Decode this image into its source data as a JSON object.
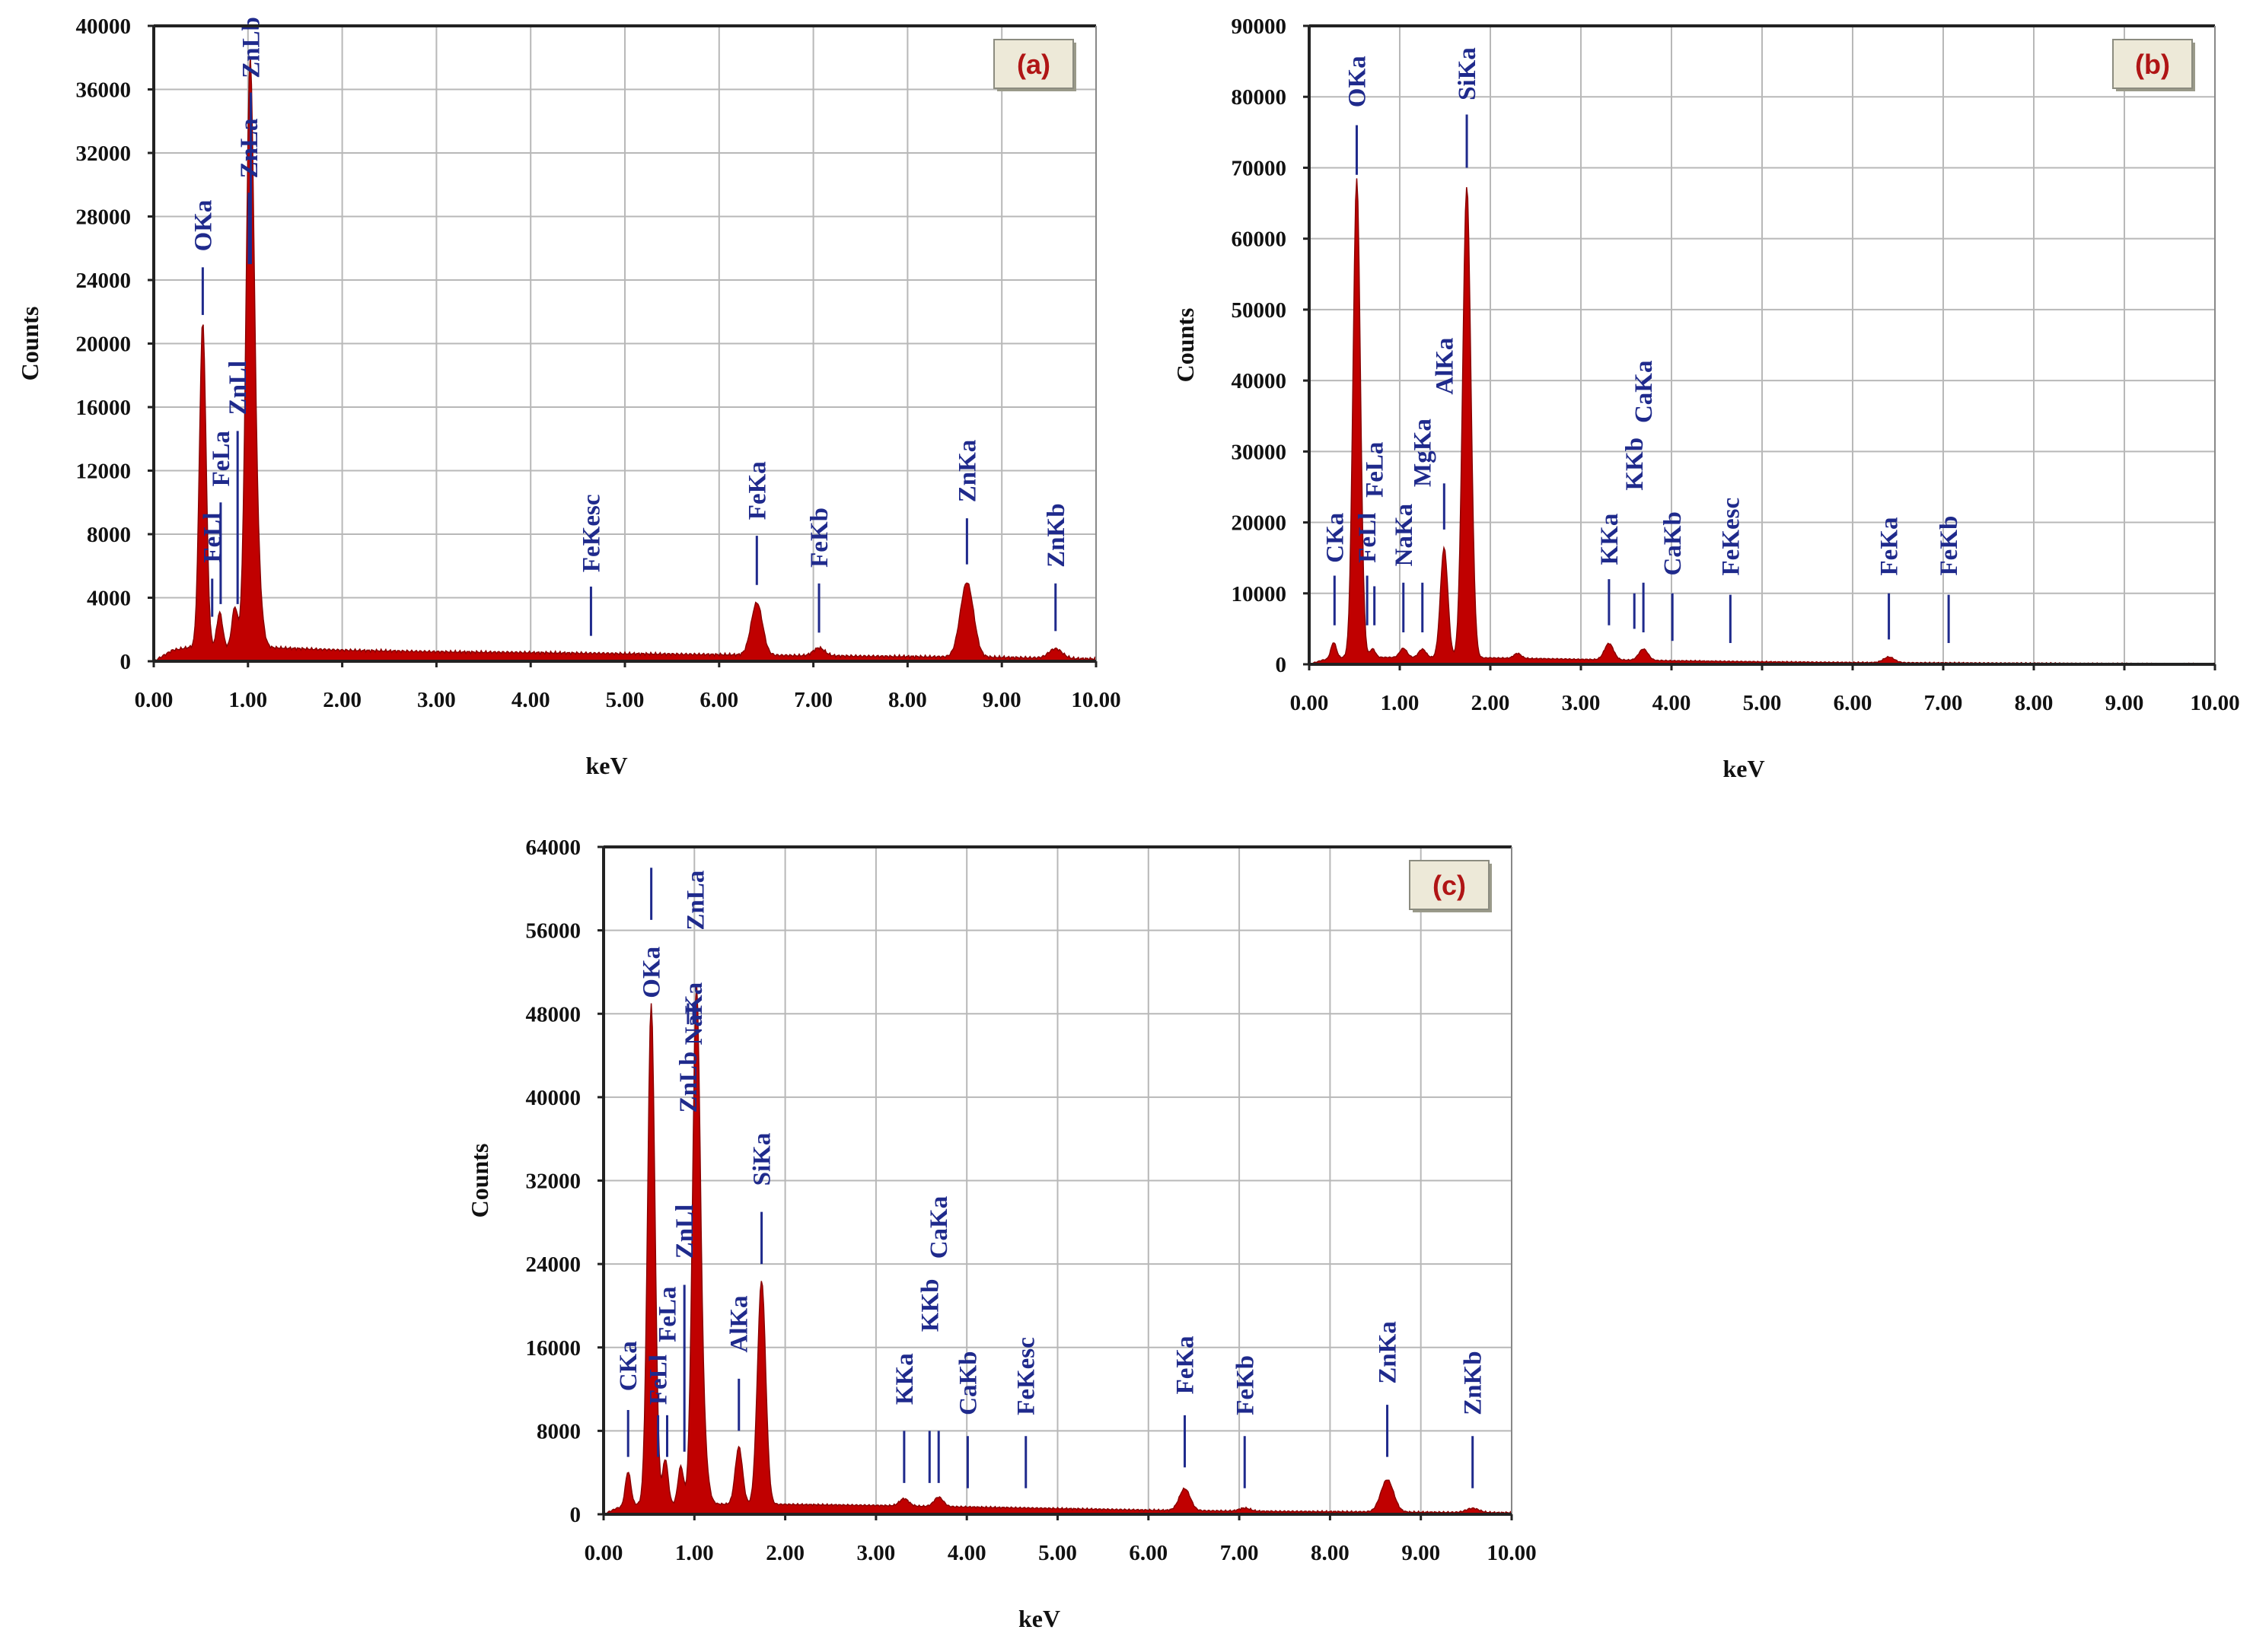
{
  "chart_data": [
    {
      "type": "area",
      "panel_label": "(a)",
      "xlabel": "keV",
      "ylabel": "Counts",
      "xlim": [
        0,
        10
      ],
      "ylim": [
        0,
        40000
      ],
      "xticks": [
        "0.00",
        "1.00",
        "2.00",
        "3.00",
        "4.00",
        "5.00",
        "6.00",
        "7.00",
        "8.00",
        "9.00",
        "10.00"
      ],
      "yticks": [
        "0",
        "4000",
        "8000",
        "12000",
        "16000",
        "20000",
        "24000",
        "28000",
        "32000",
        "36000",
        "40000"
      ],
      "color": "#c00000",
      "baseline": [
        [
          0.0,
          0
        ],
        [
          0.2,
          700
        ],
        [
          0.4,
          900
        ],
        [
          1.3,
          850
        ],
        [
          2.0,
          700
        ],
        [
          3.0,
          600
        ],
        [
          4.0,
          550
        ],
        [
          5.0,
          480
        ],
        [
          6.0,
          420
        ],
        [
          7.0,
          350
        ],
        [
          8.0,
          300
        ],
        [
          9.0,
          250
        ],
        [
          10.0,
          150
        ]
      ],
      "peaks": [
        {
          "x": 0.52,
          "y": 20500,
          "w": 0.035
        },
        {
          "x": 0.7,
          "y": 2200,
          "w": 0.03
        },
        {
          "x": 0.86,
          "y": 2500,
          "w": 0.03
        },
        {
          "x": 1.02,
          "y": 28200,
          "w": 0.04
        },
        {
          "x": 1.05,
          "y": 10000,
          "w": 0.06
        },
        {
          "x": 6.4,
          "y": 3300,
          "w": 0.06
        },
        {
          "x": 7.06,
          "y": 500,
          "w": 0.06
        },
        {
          "x": 8.63,
          "y": 4700,
          "w": 0.07
        },
        {
          "x": 9.57,
          "y": 600,
          "w": 0.07
        }
      ],
      "annotations": [
        {
          "label": "OKa",
          "x": 0.52,
          "y1": 21800,
          "y2": 24800,
          "ty": 25800
        },
        {
          "label": "FeLl",
          "x": 0.62,
          "y1": 2800,
          "y2": 5200,
          "ty": 6200
        },
        {
          "label": "FeLa",
          "x": 0.71,
          "y1": 3600,
          "y2": 10000,
          "ty": 11000
        },
        {
          "label": "ZnLl",
          "x": 0.89,
          "y1": 3600,
          "y2": 14500,
          "ty": 15500
        },
        {
          "label": "ZnLa",
          "x": 1.01,
          "y1": 25000,
          "y2": 29500,
          "ty": 30400
        },
        {
          "label": "ZnLb",
          "x": 1.03,
          "y1": 25000,
          "y2": 35800,
          "ty": 36700
        },
        {
          "label": "FeKesc",
          "x": 4.64,
          "y1": 1600,
          "y2": 4700,
          "ty": 5600
        },
        {
          "label": "FeKa",
          "x": 6.4,
          "y1": 4800,
          "y2": 7900,
          "ty": 8900
        },
        {
          "label": "FeKb",
          "x": 7.06,
          "y1": 1800,
          "y2": 4900,
          "ty": 5900
        },
        {
          "label": "ZnKa",
          "x": 8.63,
          "y1": 6100,
          "y2": 9000,
          "ty": 10000
        },
        {
          "label": "ZnKb",
          "x": 9.57,
          "y1": 1900,
          "y2": 4900,
          "ty": 5900
        }
      ]
    },
    {
      "type": "area",
      "panel_label": "(b)",
      "xlabel": "keV",
      "ylabel": "Counts",
      "xlim": [
        0,
        10
      ],
      "ylim": [
        0,
        90000
      ],
      "xticks": [
        "0.00",
        "1.00",
        "2.00",
        "3.00",
        "4.00",
        "5.00",
        "6.00",
        "7.00",
        "8.00",
        "9.00",
        "10.00"
      ],
      "yticks": [
        "0",
        "10000",
        "20000",
        "30000",
        "40000",
        "50000",
        "60000",
        "70000",
        "80000",
        "90000"
      ],
      "color": "#c00000",
      "baseline": [
        [
          0.0,
          0
        ],
        [
          0.15,
          600
        ],
        [
          0.4,
          1000
        ],
        [
          2.0,
          900
        ],
        [
          3.0,
          700
        ],
        [
          4.0,
          500
        ],
        [
          5.0,
          350
        ],
        [
          6.0,
          250
        ],
        [
          7.0,
          200
        ],
        [
          8.0,
          150
        ],
        [
          9.0,
          100
        ],
        [
          10.0,
          60
        ]
      ],
      "peaks": [
        {
          "x": 0.27,
          "y": 2300,
          "w": 0.03
        },
        {
          "x": 0.525,
          "y": 67500,
          "w": 0.04
        },
        {
          "x": 0.7,
          "y": 1200,
          "w": 0.03
        },
        {
          "x": 1.04,
          "y": 1300,
          "w": 0.04
        },
        {
          "x": 1.25,
          "y": 1200,
          "w": 0.04
        },
        {
          "x": 1.49,
          "y": 15500,
          "w": 0.04
        },
        {
          "x": 1.74,
          "y": 66500,
          "w": 0.045
        },
        {
          "x": 2.3,
          "y": 700,
          "w": 0.04
        },
        {
          "x": 3.31,
          "y": 2300,
          "w": 0.05
        },
        {
          "x": 3.69,
          "y": 1600,
          "w": 0.05
        },
        {
          "x": 6.4,
          "y": 800,
          "w": 0.06
        }
      ],
      "annotations": [
        {
          "label": "CKa",
          "x": 0.28,
          "y1": 5500,
          "y2": 12500,
          "ty": 14300
        },
        {
          "label": "FeLl",
          "x": 0.64,
          "y1": 5500,
          "y2": 12500,
          "ty": 14300
        },
        {
          "label": "FeLa",
          "x": 0.72,
          "y1": 5500,
          "y2": 11000,
          "ty": 23500
        },
        {
          "label": "NaKa",
          "x": 1.04,
          "y1": 4500,
          "y2": 11500,
          "ty": 13800
        },
        {
          "label": "MgKa",
          "x": 1.25,
          "y1": 4500,
          "y2": 11500,
          "ty": 25000
        },
        {
          "label": "AlKa",
          "x": 1.49,
          "y1": 19000,
          "y2": 25500,
          "ty": 38000
        },
        {
          "label": "SiKa",
          "x": 1.74,
          "y1": 70000,
          "y2": 77500,
          "ty": 79500
        },
        {
          "label": "OKa",
          "x": 0.525,
          "y1": 69000,
          "y2": 76000,
          "ty": 78500
        },
        {
          "label": "KKa",
          "x": 3.31,
          "y1": 5500,
          "y2": 12000,
          "ty": 14000
        },
        {
          "label": "KKb",
          "x": 3.59,
          "y1": 5000,
          "y2": 10000,
          "ty": 24500
        },
        {
          "label": "CaKa",
          "x": 3.69,
          "y1": 4500,
          "y2": 11500,
          "ty": 34000
        },
        {
          "label": "CaKb",
          "x": 4.01,
          "y1": 3300,
          "y2": 10000,
          "ty": 12500
        },
        {
          "label": "FeKesc",
          "x": 4.65,
          "y1": 3000,
          "y2": 9800,
          "ty": 12500
        },
        {
          "label": "FeKa",
          "x": 6.4,
          "y1": 3500,
          "y2": 10000,
          "ty": 12500
        },
        {
          "label": "FeKb",
          "x": 7.06,
          "y1": 3000,
          "y2": 9800,
          "ty": 12500
        }
      ]
    },
    {
      "type": "area",
      "panel_label": "(c)",
      "xlabel": "keV",
      "ylabel": "Counts",
      "xlim": [
        0,
        10
      ],
      "ylim": [
        0,
        64000
      ],
      "xticks": [
        "0.00",
        "1.00",
        "2.00",
        "3.00",
        "4.00",
        "5.00",
        "6.00",
        "7.00",
        "8.00",
        "9.00",
        "10.00"
      ],
      "yticks": [
        "0",
        "8000",
        "16000",
        "24000",
        "32000",
        "40000",
        "48000",
        "56000",
        "64000"
      ],
      "color": "#c00000",
      "baseline": [
        [
          0.0,
          0
        ],
        [
          0.15,
          600
        ],
        [
          0.4,
          1000
        ],
        [
          2.0,
          950
        ],
        [
          3.0,
          850
        ],
        [
          4.0,
          700
        ],
        [
          5.0,
          550
        ],
        [
          6.0,
          400
        ],
        [
          7.0,
          300
        ],
        [
          8.0,
          250
        ],
        [
          9.0,
          200
        ],
        [
          10.0,
          150
        ]
      ],
      "peaks": [
        {
          "x": 0.27,
          "y": 3300,
          "w": 0.03
        },
        {
          "x": 0.525,
          "y": 48000,
          "w": 0.04
        },
        {
          "x": 0.68,
          "y": 4300,
          "w": 0.03
        },
        {
          "x": 0.85,
          "y": 3600,
          "w": 0.03
        },
        {
          "x": 1.02,
          "y": 39000,
          "w": 0.04
        },
        {
          "x": 1.05,
          "y": 12000,
          "w": 0.06
        },
        {
          "x": 1.49,
          "y": 5500,
          "w": 0.04
        },
        {
          "x": 1.74,
          "y": 21500,
          "w": 0.045
        },
        {
          "x": 3.31,
          "y": 700,
          "w": 0.05
        },
        {
          "x": 3.69,
          "y": 900,
          "w": 0.05
        },
        {
          "x": 6.4,
          "y": 2100,
          "w": 0.06
        },
        {
          "x": 7.06,
          "y": 300,
          "w": 0.06
        },
        {
          "x": 8.63,
          "y": 3100,
          "w": 0.07
        },
        {
          "x": 9.57,
          "y": 400,
          "w": 0.07
        }
      ],
      "annotations": [
        {
          "label": "CKa",
          "x": 0.27,
          "y1": 5500,
          "y2": 10000,
          "ty": 11800
        },
        {
          "label": "FeLl",
          "x": 0.6,
          "y1": 5500,
          "y2": 9500,
          "ty": 10500
        },
        {
          "label": "FeLa",
          "x": 0.7,
          "y1": 5500,
          "y2": 9500,
          "ty": 16500
        },
        {
          "label": "ZnLl",
          "x": 0.89,
          "y1": 6000,
          "y2": 22000,
          "ty": 24500
        },
        {
          "label": "OKa",
          "x": 0.525,
          "y1": 57000,
          "y2": 62000,
          "ty": 49500
        },
        {
          "label": "ZnLb",
          "x": 0.93,
          "y1": 47000,
          "y2": 49000,
          "ty": 38500
        },
        {
          "label": "NaKa",
          "x": 0.99,
          "y1": 47000,
          "y2": 49000,
          "ty": 45000
        },
        {
          "label": "ZnLa",
          "x": 1.01,
          "y1": 47000,
          "y2": 49000,
          "ty": 56000
        },
        {
          "label": "AlKa",
          "x": 1.49,
          "y1": 8000,
          "y2": 13000,
          "ty": 15500
        },
        {
          "label": "SiKa",
          "x": 1.74,
          "y1": 24000,
          "y2": 29000,
          "ty": 31500
        },
        {
          "label": "KKa",
          "x": 3.31,
          "y1": 3000,
          "y2": 8000,
          "ty": 10500
        },
        {
          "label": "KKb",
          "x": 3.59,
          "y1": 3000,
          "y2": 8000,
          "ty": 17500
        },
        {
          "label": "CaKa",
          "x": 3.69,
          "y1": 3000,
          "y2": 8000,
          "ty": 24500
        },
        {
          "label": "CaKb",
          "x": 4.01,
          "y1": 2500,
          "y2": 7500,
          "ty": 9500
        },
        {
          "label": "FeKesc",
          "x": 4.65,
          "y1": 2500,
          "y2": 7500,
          "ty": 9500
        },
        {
          "label": "FeKa",
          "x": 6.4,
          "y1": 4500,
          "y2": 9500,
          "ty": 11500
        },
        {
          "label": "FeKb",
          "x": 7.06,
          "y1": 2500,
          "y2": 7500,
          "ty": 9500
        },
        {
          "label": "ZnKa",
          "x": 8.63,
          "y1": 5500,
          "y2": 10500,
          "ty": 12500
        },
        {
          "label": "ZnKb",
          "x": 9.57,
          "y1": 2500,
          "y2": 7500,
          "ty": 9500
        }
      ]
    }
  ]
}
